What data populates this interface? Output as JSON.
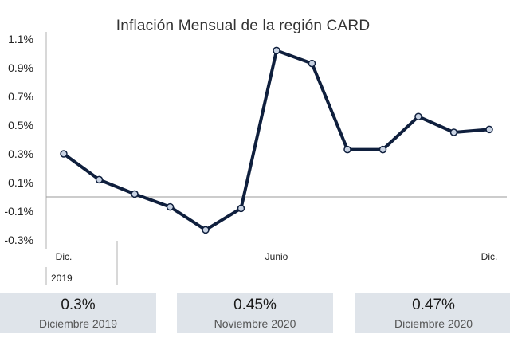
{
  "chart_data": {
    "type": "line",
    "title": "Inflación Mensual de la región CARD",
    "x_labels": [
      {
        "index": 0,
        "text": "Dic."
      },
      {
        "index": 6,
        "text": "Junio"
      },
      {
        "index": 12,
        "text": "Dic."
      }
    ],
    "year_label": "2019",
    "y_ticks": [
      "1.1%",
      "0.9%",
      "0.7%",
      "0.5%",
      "0.3%",
      "0.1%",
      "-0.1%",
      "-0.3%"
    ],
    "y_tick_values": [
      1.1,
      0.9,
      0.7,
      0.5,
      0.3,
      0.1,
      -0.1,
      -0.3
    ],
    "ylim": [
      -0.3,
      1.1
    ],
    "series": [
      {
        "values": [
          0.3,
          0.12,
          0.02,
          -0.07,
          -0.23,
          -0.08,
          1.02,
          0.93,
          0.33,
          0.33,
          0.56,
          0.45,
          0.47
        ]
      }
    ],
    "colors": {
      "line": "#0f1f3d",
      "marker_fill": "#c9d3e3",
      "zero_line": "#9a9a9a"
    }
  },
  "summary": [
    {
      "value": "0.3%",
      "label": "Diciembre 2019"
    },
    {
      "value": "0.45%",
      "label": "Noviembre 2020"
    },
    {
      "value": "0.47%",
      "label": "Diciembre 2020"
    }
  ]
}
